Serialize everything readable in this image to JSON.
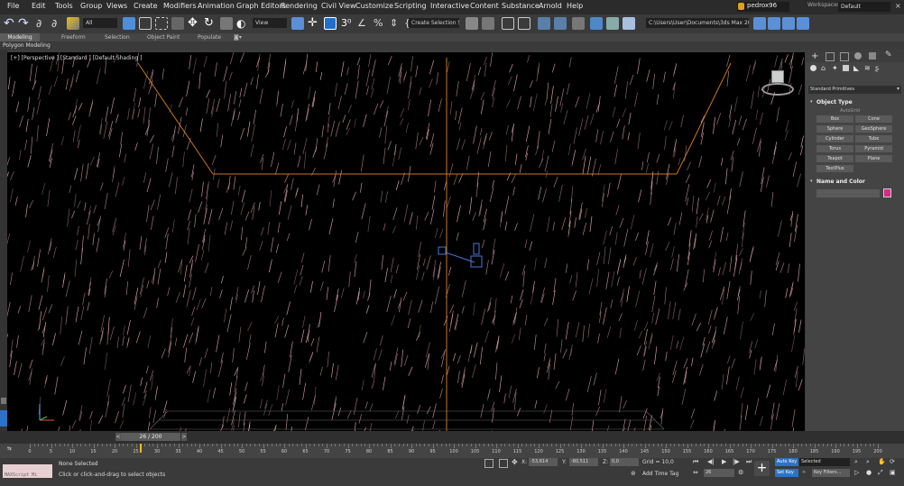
{
  "menu": [
    "File",
    "Edit",
    "Tools",
    "Group",
    "Views",
    "Create",
    "Modifiers",
    "Animation",
    "Graph Editors",
    "Rendering",
    "Civil View",
    "Customize",
    "Scripting",
    "Interactive",
    "Content",
    "Substance",
    "Arnold",
    "Help"
  ],
  "user": "pedrox96",
  "workspaces_label": "Workspaces:",
  "workspace_value": "Default",
  "toolbar": {
    "selection_filter": "All",
    "ref_coord": "View",
    "named_selection": "Create Selection Se",
    "project_path": "C:\\Users\\User\\Documents\\3ds Max 2021"
  },
  "ribbon_tabs": [
    "Modeling",
    "Freeform",
    "Selection",
    "Object Paint",
    "Populate"
  ],
  "subribbon": "Polygon Modeling",
  "viewport_label": "[+] [Perspective ] [Standard ] [Default Shading ]",
  "command_panel": {
    "category": "Standard Primitives",
    "object_type_title": "Object Type",
    "autogrid": "AutoGrid",
    "buttons": [
      "Box",
      "Cone",
      "Sphere",
      "GeoSphere",
      "Cylinder",
      "Tube",
      "Torus",
      "Pyramid",
      "Teapot",
      "Plane",
      "TextPlus"
    ],
    "name_color_title": "Name and Color",
    "object_color": "#d62a8a"
  },
  "time_slider": {
    "frame": 26,
    "total": 200,
    "display": "26 / 200"
  },
  "track_ticks": [
    0,
    5,
    10,
    15,
    20,
    25,
    30,
    35,
    40,
    45,
    50,
    55,
    60,
    65,
    70,
    75,
    80,
    85,
    90,
    95,
    100,
    105,
    110,
    115,
    120,
    125,
    130,
    135,
    140,
    145,
    150,
    155,
    160,
    165,
    170,
    175,
    180,
    185,
    190,
    195,
    200
  ],
  "status": {
    "maxscript": "MAXScript Mi",
    "selection": "None Selected",
    "prompt": "Click or click-and-drag to select objects",
    "x_label": "X:",
    "x_value": "-53,614",
    "y_label": "Y:",
    "y_value": "-80,511",
    "z_label": "Z:",
    "z_value": "0,0",
    "grid": "Grid = 10,0",
    "add_time_tag": "Add Time Tag",
    "frame_field": "26",
    "auto_key": "Auto Key",
    "set_key": "Set Key",
    "key_mode": "Selected",
    "key_filters": "Key Filters..."
  },
  "colors": {
    "rain": "#d9a0a8",
    "grid_orange": "#c8781e",
    "selected_blue": "#4a74d8",
    "accent_blue": "#2c72c7",
    "viewport_bg": "#000000"
  }
}
